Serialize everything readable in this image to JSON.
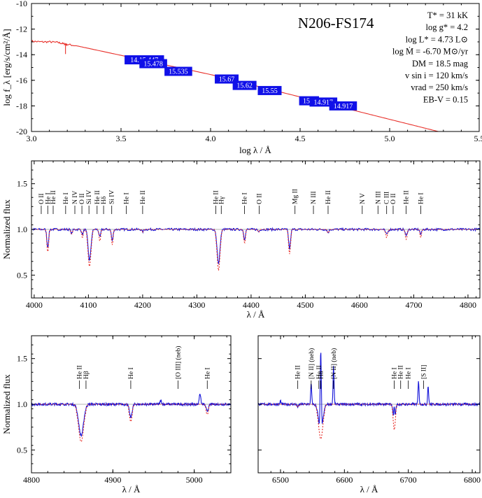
{
  "chart_data": [
    {
      "type": "line",
      "name": "sed",
      "title": "N206-FS174",
      "xlabel": "log λ / Å",
      "ylabel": "log f_λ [erg/s/cm²/Å]",
      "xlim": [
        3.0,
        5.5
      ],
      "ylim": [
        -20,
        -10
      ],
      "xticks": [
        "3.0",
        "3.5",
        "4.0",
        "4.5",
        "5.0",
        "5.5"
      ],
      "yticks": [
        "-10",
        "-12",
        "-14",
        "-16",
        "-18",
        "-20"
      ],
      "params": [
        "T* = 31 kK",
        "log g* = 4.2",
        "log L* = 4.73 L⊙",
        "log Ṁ = -6.70 M⊙/yr",
        "DM = 18.5 mag",
        "v sin i = 120 km/s",
        "vrad = 250 km/s",
        "EB-V = 0.15"
      ],
      "model_color": "#e8302a",
      "box_color": "#1010e8",
      "model_x": [
        3.0,
        3.05,
        3.1,
        3.15,
        3.18,
        3.2,
        3.25,
        3.3,
        3.4,
        3.5,
        3.6,
        3.7,
        3.8,
        3.9,
        4.0,
        4.1,
        4.2,
        4.3,
        4.4,
        4.5,
        4.6,
        4.7,
        4.8,
        4.9,
        5.0,
        5.1,
        5.2,
        5.3
      ],
      "model_y": [
        -12.95,
        -13.0,
        -13.0,
        -13.05,
        -13.15,
        -13.2,
        -13.3,
        -13.45,
        -13.75,
        -14.05,
        -14.35,
        -14.65,
        -14.95,
        -15.25,
        -15.55,
        -15.9,
        -16.25,
        -16.6,
        -16.95,
        -17.3,
        -17.65,
        -18.0,
        -18.35,
        -18.7,
        -19.05,
        -19.4,
        -19.75,
        -20.1
      ],
      "photometry": [
        {
          "x": 3.63,
          "y": -14.4,
          "label": "14.15.447"
        },
        {
          "x": 3.68,
          "y": -14.7,
          "label": "15.478"
        },
        {
          "x": 3.82,
          "y": -15.3,
          "label": "15.535"
        },
        {
          "x": 4.09,
          "y": -15.9,
          "label": "15.67"
        },
        {
          "x": 4.19,
          "y": -16.4,
          "label": "15.62"
        },
        {
          "x": 4.33,
          "y": -16.8,
          "label": "15.55"
        },
        {
          "x": 4.55,
          "y": -17.6,
          "label": "15.8"
        },
        {
          "x": 4.63,
          "y": -17.7,
          "label": "14.917"
        },
        {
          "x": 4.74,
          "y": -18.0,
          "label": "14.917"
        }
      ]
    },
    {
      "type": "line",
      "name": "blue-optical",
      "xlabel": "λ / Å",
      "ylabel": "Normalized flux",
      "xlim": [
        3995,
        4822
      ],
      "ylim": [
        0.25,
        1.75
      ],
      "xticks": [
        "4000",
        "4100",
        "4200",
        "4300",
        "4400",
        "4500",
        "4600",
        "4700",
        "4800"
      ],
      "yticks": [
        "0.5",
        "1.0",
        "1.5"
      ],
      "lines": [
        {
          "c": 4025,
          "d": 0.22,
          "w": 1.6
        },
        {
          "c": 4069,
          "d": 0.05,
          "w": 1.5
        },
        {
          "c": 4089,
          "d": 0.06,
          "w": 1.5
        },
        {
          "c": 4102,
          "d": 0.38,
          "w": 2.6
        },
        {
          "c": 4121,
          "d": 0.1,
          "w": 1.5
        },
        {
          "c": 4144,
          "d": 0.14,
          "w": 1.5
        },
        {
          "c": 4200,
          "d": 0.03,
          "w": 1.5
        },
        {
          "c": 4340,
          "d": 0.42,
          "w": 2.6
        },
        {
          "c": 4388,
          "d": 0.12,
          "w": 1.5
        },
        {
          "c": 4414,
          "d": 0.03,
          "w": 1.3
        },
        {
          "c": 4471,
          "d": 0.24,
          "w": 1.7
        },
        {
          "c": 4542,
          "d": 0.04,
          "w": 1.5
        },
        {
          "c": 4650,
          "d": 0.06,
          "w": 2.2
        },
        {
          "c": 4686,
          "d": 0.08,
          "w": 1.7
        },
        {
          "c": 4713,
          "d": 0.06,
          "w": 1.5
        }
      ],
      "annotations": [
        {
          "x": 4013,
          "label": "O II"
        },
        {
          "x": 4025,
          "label": "He I"
        },
        {
          "x": 4035,
          "label": "He II"
        },
        {
          "x": 4058,
          "label": "He I"
        },
        {
          "x": 4075,
          "label": "N IV"
        },
        {
          "x": 4088,
          "label": "O II"
        },
        {
          "x": 4101,
          "label": "Si IV"
        },
        {
          "x": 4116,
          "label": "He II"
        },
        {
          "x": 4128,
          "label": "Hδ"
        },
        {
          "x": 4143,
          "label": "Si IV"
        },
        {
          "x": 4170,
          "label": "He I"
        },
        {
          "x": 4200,
          "label": "He II"
        },
        {
          "x": 4335,
          "label": "He II"
        },
        {
          "x": 4345,
          "label": "Hγ"
        },
        {
          "x": 4388,
          "label": "He I"
        },
        {
          "x": 4415,
          "label": "O II"
        },
        {
          "x": 4481,
          "label": "Mg II"
        },
        {
          "x": 4515,
          "label": "N III"
        },
        {
          "x": 4542,
          "label": "He II"
        },
        {
          "x": 4605,
          "label": "N V"
        },
        {
          "x": 4634,
          "label": "N III"
        },
        {
          "x": 4650,
          "label": "C III"
        },
        {
          "x": 4662,
          "label": "O II"
        },
        {
          "x": 4686,
          "label": "He II"
        },
        {
          "x": 4713,
          "label": "He I"
        }
      ]
    },
    {
      "type": "line",
      "name": "hbeta",
      "xlabel": "λ / Å",
      "ylabel": "Normalized flux",
      "xlim": [
        4800,
        5045
      ],
      "ylim": [
        0.25,
        1.75
      ],
      "xticks": [
        "4800",
        "4900",
        "5000"
      ],
      "yticks": [
        "0.5",
        "1.0",
        "1.5"
      ],
      "lines": [
        {
          "c": 4861,
          "d": 0.38,
          "w": 3.0
        },
        {
          "c": 4922,
          "d": 0.16,
          "w": 1.6
        },
        {
          "c": 5016,
          "d": 0.08,
          "w": 1.5
        }
      ],
      "emission": [
        {
          "c": 4959,
          "h": 0.04,
          "w": 0.9
        },
        {
          "c": 5007,
          "h": 0.12,
          "w": 0.9
        }
      ],
      "annotations": [
        {
          "x": 4859,
          "label": "He II"
        },
        {
          "x": 4867,
          "label": "Hβ"
        },
        {
          "x": 4922,
          "label": "He I"
        },
        {
          "x": 4980,
          "label": "[O III] (neb)"
        },
        {
          "x": 5016,
          "label": "He I"
        }
      ]
    },
    {
      "type": "line",
      "name": "halpha",
      "xlabel": "λ / Å",
      "ylabel": "",
      "xlim": [
        6465,
        6812
      ],
      "ylim": [
        0.25,
        1.75
      ],
      "xticks": [
        "6500",
        "6600",
        "6700",
        "6800"
      ],
      "yticks": [],
      "lines": [
        {
          "c": 6527,
          "d": 0.03,
          "w": 1.4
        },
        {
          "c": 6563,
          "d": 0.35,
          "w": 3.2
        },
        {
          "c": 6678,
          "d": 0.25,
          "w": 1.6
        }
      ],
      "emission": [
        {
          "c": 6548,
          "h": 0.22,
          "w": 0.8
        },
        {
          "c": 6563,
          "h": 0.9,
          "w": 0.9
        },
        {
          "c": 6583,
          "h": 0.42,
          "w": 0.8
        },
        {
          "c": 6678,
          "h": 0.2,
          "w": 0.8
        },
        {
          "c": 6716,
          "h": 0.25,
          "w": 0.8
        },
        {
          "c": 6731,
          "h": 0.2,
          "w": 0.8
        },
        {
          "c": 6500,
          "h": 0.04,
          "w": 0.7
        }
      ],
      "annotations": [
        {
          "x": 6527,
          "label": "He II"
        },
        {
          "x": 6548,
          "label": "[N II] (neb)"
        },
        {
          "x": 6560,
          "label": "He II"
        },
        {
          "x": 6563,
          "label": "Hα"
        },
        {
          "x": 6583,
          "label": "[N II] (neb)"
        },
        {
          "x": 6678,
          "label": "He I"
        },
        {
          "x": 6688,
          "label": "He II"
        },
        {
          "x": 6700,
          "label": "He I"
        },
        {
          "x": 6724,
          "label": "[S II]"
        }
      ]
    }
  ]
}
